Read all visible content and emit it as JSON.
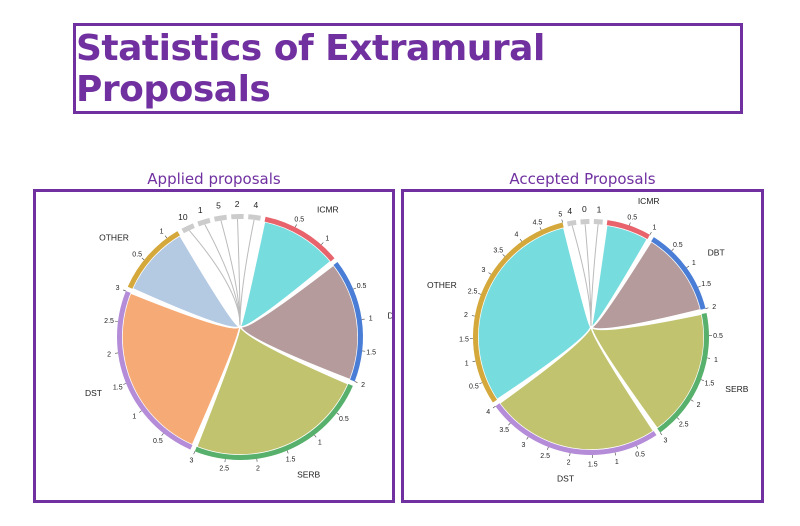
{
  "title": "Statistics of Extramural Proposals",
  "chart_data": [
    {
      "type": "chord",
      "title": "Applied proposals",
      "groups": [
        {
          "label": "ICMR",
          "value": 1.3,
          "color": "#e8636b",
          "ribbon": "#5fd6d8",
          "ticks": [
            {
              "v": 0.5,
              "t": "0.5"
            },
            {
              "v": 1,
              "t": "1"
            }
          ]
        },
        {
          "label": "DBT",
          "value": 2.0,
          "color": "#4a7ed6",
          "ribbon": "#a88a8a",
          "ticks": [
            {
              "v": 0.5,
              "t": "0.5"
            },
            {
              "v": 1,
              "t": "1"
            },
            {
              "v": 1.5,
              "t": "1.5"
            },
            {
              "v": 2,
              "t": "2"
            }
          ]
        },
        {
          "label": "SERB",
          "value": 3.0,
          "color": "#57b06b",
          "ribbon": "#b6b956",
          "ticks": [
            {
              "v": 0.5,
              "t": "0.5"
            },
            {
              "v": 1,
              "t": "1"
            },
            {
              "v": 1.5,
              "t": "1.5"
            },
            {
              "v": 2,
              "t": "2"
            },
            {
              "v": 2.5,
              "t": "2.5"
            },
            {
              "v": 3,
              "t": "3"
            }
          ]
        },
        {
          "label": "DST",
          "value": 3.0,
          "color": "#b48cd8",
          "ribbon": "#f59c5f",
          "ticks": [
            {
              "v": 0.5,
              "t": "0.5"
            },
            {
              "v": 1,
              "t": "1"
            },
            {
              "v": 1.5,
              "t": "1.5"
            },
            {
              "v": 2,
              "t": "2"
            },
            {
              "v": 2.5,
              "t": "2.5"
            },
            {
              "v": 3,
              "t": "3"
            }
          ]
        },
        {
          "label": "OTHER",
          "value": 1.2,
          "color": "#d4a83a",
          "ribbon": "#a7c0dd",
          "ticks": [
            {
              "v": 0.5,
              "t": "0.5"
            },
            {
              "v": 1,
              "t": "1"
            }
          ]
        },
        {
          "label": "10",
          "value": 0.2,
          "color": "#cccccc",
          "ribbon": "#cccccc",
          "ticks": []
        },
        {
          "label": "1",
          "value": 0.2,
          "color": "#cccccc",
          "ribbon": "#cccccc",
          "ticks": []
        },
        {
          "label": "5",
          "value": 0.2,
          "color": "#cccccc",
          "ribbon": "#cccccc",
          "ticks": []
        },
        {
          "label": "2",
          "value": 0.2,
          "color": "#cccccc",
          "ribbon": "#cccccc",
          "ticks": []
        },
        {
          "label": "4",
          "value": 0.2,
          "color": "#cccccc",
          "ribbon": "#cccccc",
          "ticks": []
        }
      ]
    },
    {
      "type": "chord",
      "title": "Accepted Proposals",
      "groups": [
        {
          "label": "ICMR",
          "value": 1.0,
          "color": "#e8636b",
          "ribbon": "#5fd6d8",
          "ticks": [
            {
              "v": 0.5,
              "t": "0.5"
            },
            {
              "v": 1,
              "t": "1"
            }
          ]
        },
        {
          "label": "DBT",
          "value": 2.0,
          "color": "#4a7ed6",
          "ribbon": "#a88a8a",
          "ticks": [
            {
              "v": 0.5,
              "t": "0.5"
            },
            {
              "v": 1,
              "t": "1"
            },
            {
              "v": 1.5,
              "t": "1.5"
            },
            {
              "v": 2,
              "t": "2"
            }
          ]
        },
        {
          "label": "SERB",
          "value": 3.0,
          "color": "#57b06b",
          "ribbon": "#b6b956",
          "ticks": [
            {
              "v": 0.5,
              "t": "0.5"
            },
            {
              "v": 1,
              "t": "1"
            },
            {
              "v": 1.5,
              "t": "1.5"
            },
            {
              "v": 2,
              "t": "2"
            },
            {
              "v": 2.5,
              "t": "2.5"
            },
            {
              "v": 3,
              "t": "3"
            }
          ]
        },
        {
          "label": "DST",
          "value": 4.0,
          "color": "#b48cd8",
          "ribbon": "#b6b956",
          "ticks": [
            {
              "v": 0.5,
              "t": "0.5"
            },
            {
              "v": 1,
              "t": "1"
            },
            {
              "v": 1.5,
              "t": "1.5"
            },
            {
              "v": 2,
              "t": "2"
            },
            {
              "v": 2.5,
              "t": "2.5"
            },
            {
              "v": 3,
              "t": "3"
            },
            {
              "v": 3.5,
              "t": "3.5"
            },
            {
              "v": 4,
              "t": "4"
            }
          ]
        },
        {
          "label": "OTHER",
          "value": 5.0,
          "color": "#d4a83a",
          "ribbon": "#5fd6d8",
          "ticks": [
            {
              "v": 0.5,
              "t": "0.5"
            },
            {
              "v": 1,
              "t": "1"
            },
            {
              "v": 1.5,
              "t": "1.5"
            },
            {
              "v": 2,
              "t": "2"
            },
            {
              "v": 2.5,
              "t": "2.5"
            },
            {
              "v": 3,
              "t": "3"
            },
            {
              "v": 3.5,
              "t": "3.5"
            },
            {
              "v": 4,
              "t": "4"
            },
            {
              "v": 4.5,
              "t": "4.5"
            },
            {
              "v": 5,
              "t": "5"
            }
          ]
        },
        {
          "label": "4",
          "value": 0.2,
          "color": "#cccccc",
          "ribbon": "#cccccc",
          "ticks": []
        },
        {
          "label": "0",
          "value": 0.2,
          "color": "#cccccc",
          "ribbon": "#cccccc",
          "ticks": []
        },
        {
          "label": "1",
          "value": 0.2,
          "color": "#cccccc",
          "ribbon": "#cccccc",
          "ticks": []
        }
      ]
    }
  ]
}
